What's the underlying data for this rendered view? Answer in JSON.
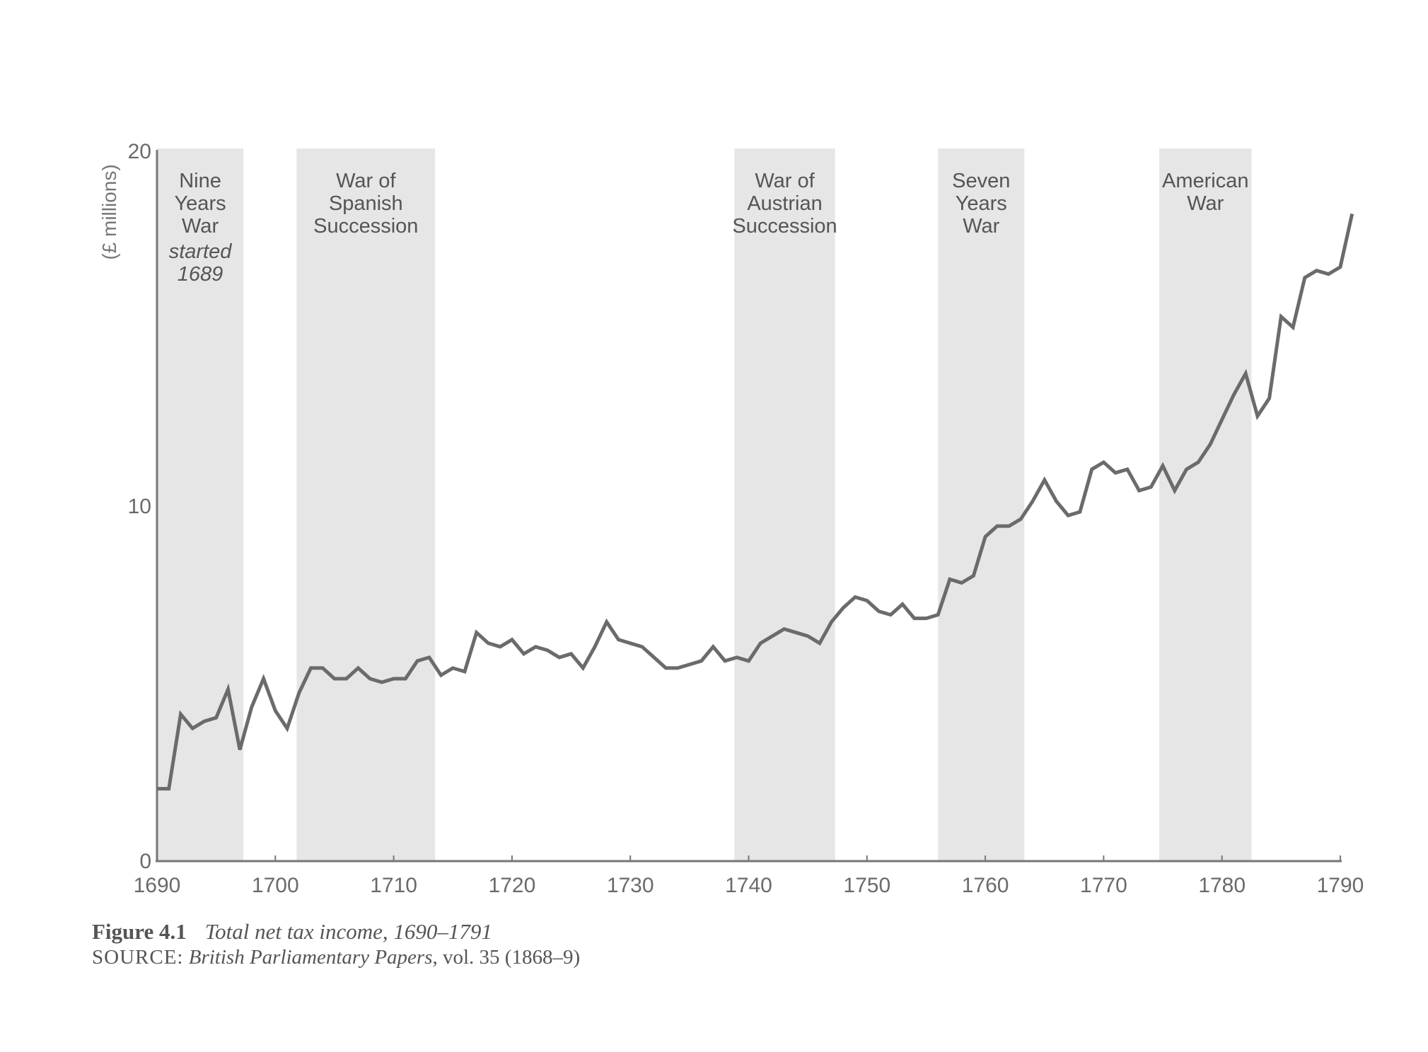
{
  "chart_data": {
    "type": "line",
    "title": "Total net tax income, 1690–1791",
    "figure_label": "Figure 4.1",
    "source_label": "SOURCE:",
    "source_title": "British Parliamentary Papers",
    "source_rest": ", vol. 35 (1868–9)",
    "ylabel": "(£ millions)",
    "xlabel": "",
    "xlim": [
      1690,
      1790
    ],
    "ylim": [
      0,
      20
    ],
    "x_ticks": [
      "1690",
      "1700",
      "1710",
      "1720",
      "1730",
      "1740",
      "1750",
      "1760",
      "1770",
      "1780",
      "1790"
    ],
    "y_ticks": [
      "0",
      "10",
      "20"
    ],
    "grid": false,
    "line_color": "#6b6b6b",
    "shade_color": "#e6e6e6",
    "wars": [
      {
        "lines": [
          "Nine",
          "Years",
          "War"
        ],
        "note": [
          "started",
          "1689"
        ],
        "start": 1690,
        "end": 1697.3
      },
      {
        "lines": [
          "War of",
          "Spanish",
          "Succession"
        ],
        "start": 1701.8,
        "end": 1713.5
      },
      {
        "lines": [
          "War of",
          "Austrian",
          "Succession"
        ],
        "start": 1738.8,
        "end": 1747.3
      },
      {
        "lines": [
          "Seven",
          "Years",
          "War"
        ],
        "start": 1756,
        "end": 1763.3
      },
      {
        "lines": [
          "American",
          "War"
        ],
        "start": 1774.7,
        "end": 1782.5
      }
    ],
    "x": [
      1690,
      1691,
      1692,
      1693,
      1694,
      1695,
      1696,
      1697,
      1698,
      1699,
      1700,
      1701,
      1702,
      1703,
      1704,
      1705,
      1706,
      1707,
      1708,
      1709,
      1710,
      1711,
      1712,
      1713,
      1714,
      1715,
      1716,
      1717,
      1718,
      1719,
      1720,
      1721,
      1722,
      1723,
      1724,
      1725,
      1726,
      1727,
      1728,
      1729,
      1730,
      1731,
      1732,
      1733,
      1734,
      1735,
      1736,
      1737,
      1738,
      1739,
      1740,
      1741,
      1742,
      1743,
      1744,
      1745,
      1746,
      1747,
      1748,
      1749,
      1750,
      1751,
      1752,
      1753,
      1754,
      1755,
      1756,
      1757,
      1758,
      1759,
      1760,
      1761,
      1762,
      1763,
      1764,
      1765,
      1766,
      1767,
      1768,
      1769,
      1770,
      1771,
      1772,
      1773,
      1774,
      1775,
      1776,
      1777,
      1778,
      1779,
      1780,
      1781,
      1782,
      1783,
      1784,
      1785,
      1786,
      1787,
      1788,
      1789,
      1790,
      1791
    ],
    "values": [
      2.0,
      2.0,
      4.1,
      3.7,
      3.9,
      4.0,
      4.8,
      3.1,
      4.3,
      5.1,
      4.2,
      3.7,
      4.7,
      5.4,
      5.4,
      5.1,
      5.1,
      5.4,
      5.1,
      5.0,
      5.1,
      5.1,
      5.6,
      5.7,
      5.2,
      5.4,
      5.3,
      6.4,
      6.1,
      6.0,
      6.2,
      5.8,
      6.0,
      5.9,
      5.7,
      5.8,
      5.4,
      6.0,
      6.7,
      6.2,
      6.1,
      6.0,
      5.7,
      5.4,
      5.4,
      5.5,
      5.6,
      6.0,
      5.6,
      5.7,
      5.6,
      6.1,
      6.3,
      6.5,
      6.4,
      6.3,
      6.1,
      6.7,
      7.1,
      7.4,
      7.3,
      7.0,
      6.9,
      7.2,
      6.8,
      6.8,
      6.9,
      7.9,
      7.8,
      8.0,
      9.1,
      9.4,
      9.4,
      9.6,
      10.1,
      10.7,
      10.1,
      9.7,
      9.8,
      11.0,
      11.2,
      10.9,
      11.0,
      10.4,
      10.5,
      11.1,
      10.4,
      11.0,
      11.2,
      11.7,
      12.4,
      13.1,
      13.7,
      12.5,
      13.0,
      15.3,
      15.0,
      16.4,
      16.6,
      16.5,
      16.7,
      18.2
    ]
  }
}
